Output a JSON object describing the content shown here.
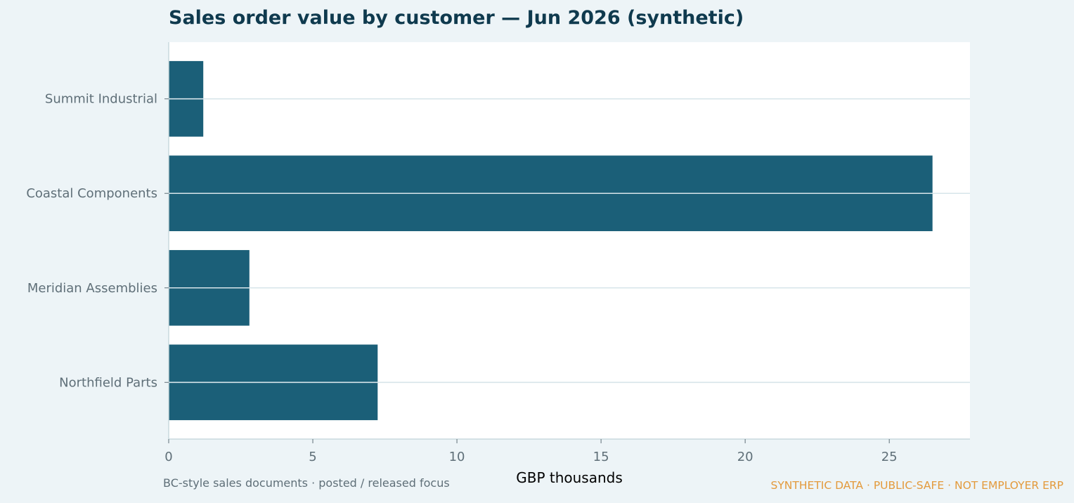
{
  "colors": {
    "background": "#edf4f7",
    "plot_background": "#ffffff",
    "bar": "#1b5f78",
    "grid": "#d7e5ea",
    "axis": "#c9d9de",
    "tick_text": "#5f6f78",
    "title": "#0f3a4e",
    "watermark": "#e39a3c"
  },
  "footnote": "BC-style sales documents · posted / released focus",
  "watermark": "SYNTHETIC DATA · PUBLIC-SAFE · NOT EMPLOYER ERP",
  "chart_data": {
    "type": "bar",
    "orientation": "horizontal",
    "title": "Sales order value by customer — Jun 2026 (synthetic)",
    "xlabel": "GBP thousands",
    "ylabel": "",
    "categories": [
      "Summit Industrial",
      "Coastal Components",
      "Meridian Assemblies",
      "Northfield Parts"
    ],
    "values": [
      1.2,
      26.5,
      2.8,
      7.25
    ],
    "xlim": [
      0,
      27.8
    ],
    "xticks": [
      0,
      5,
      10,
      15,
      20,
      25
    ],
    "grid": "horizontal",
    "legend": "none"
  }
}
